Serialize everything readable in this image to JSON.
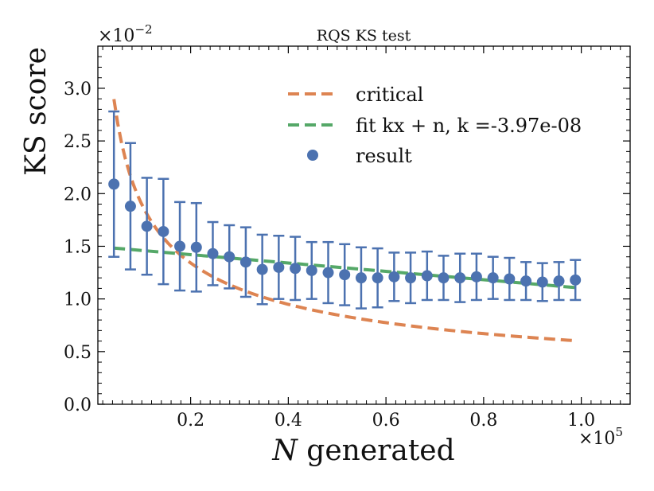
{
  "chart_data": {
    "type": "scatter",
    "title": "RQS KS test",
    "xlabel_italic": "N",
    "xlabel_rest": " generated",
    "ylabel": "KS score",
    "x_multiplier": "×10",
    "x_multiplier_exp": "5",
    "y_multiplier": "×10",
    "y_multiplier_exp": "−2",
    "xlim": [
      0.01,
      1.1
    ],
    "ylim": [
      0.0,
      3.4
    ],
    "x_ticks": [
      0.2,
      0.4,
      0.6,
      0.8,
      1.0
    ],
    "x_tick_labels": [
      "0.2",
      "0.4",
      "0.6",
      "0.8",
      "1.0"
    ],
    "y_ticks": [
      0.0,
      0.5,
      1.0,
      1.5,
      2.0,
      2.5,
      3.0
    ],
    "y_tick_labels": [
      "0.0",
      "0.5",
      "1.0",
      "1.5",
      "2.0",
      "2.5",
      "3.0"
    ],
    "legend": {
      "position": "top-right",
      "entries": [
        {
          "label": "critical",
          "style": "dashed-line",
          "color": "#dd8452"
        },
        {
          "label": "fit kx + n, k =-3.97e-08",
          "style": "dashed-line",
          "color": "#55a868"
        },
        {
          "label": "result",
          "style": "marker",
          "color": "#4c72b0"
        }
      ]
    },
    "series": [
      {
        "name": "result",
        "color": "#4c72b0",
        "x": [
          0.0429,
          0.0767,
          0.1104,
          0.1442,
          0.1779,
          0.2117,
          0.2454,
          0.2792,
          0.3129,
          0.3467,
          0.3804,
          0.4142,
          0.4479,
          0.4817,
          0.5154,
          0.5492,
          0.5829,
          0.6167,
          0.6504,
          0.6842,
          0.7179,
          0.7517,
          0.7854,
          0.8192,
          0.8529,
          0.8867,
          0.9204,
          0.9542,
          0.9879
        ],
        "y": [
          2.09,
          1.88,
          1.69,
          1.64,
          1.5,
          1.49,
          1.43,
          1.4,
          1.35,
          1.28,
          1.3,
          1.29,
          1.27,
          1.25,
          1.23,
          1.2,
          1.2,
          1.21,
          1.2,
          1.22,
          1.2,
          1.2,
          1.21,
          1.2,
          1.19,
          1.17,
          1.16,
          1.17,
          1.18
        ],
        "yerr": [
          0.69,
          0.6,
          0.46,
          0.5,
          0.42,
          0.42,
          0.3,
          0.3,
          0.33,
          0.33,
          0.3,
          0.3,
          0.27,
          0.29,
          0.29,
          0.29,
          0.28,
          0.23,
          0.24,
          0.23,
          0.21,
          0.23,
          0.22,
          0.2,
          0.2,
          0.18,
          0.18,
          0.18,
          0.19
        ]
      },
      {
        "name": "critical",
        "color": "#dd8452",
        "formula": "y = 0.60 / sqrt(x)",
        "x_range": [
          0.0429,
          0.9879
        ]
      },
      {
        "name": "fit",
        "color": "#55a868",
        "slope_per_unit": -0.397,
        "intercept": 1.5,
        "x_range": [
          0.0429,
          0.9879
        ]
      }
    ]
  }
}
